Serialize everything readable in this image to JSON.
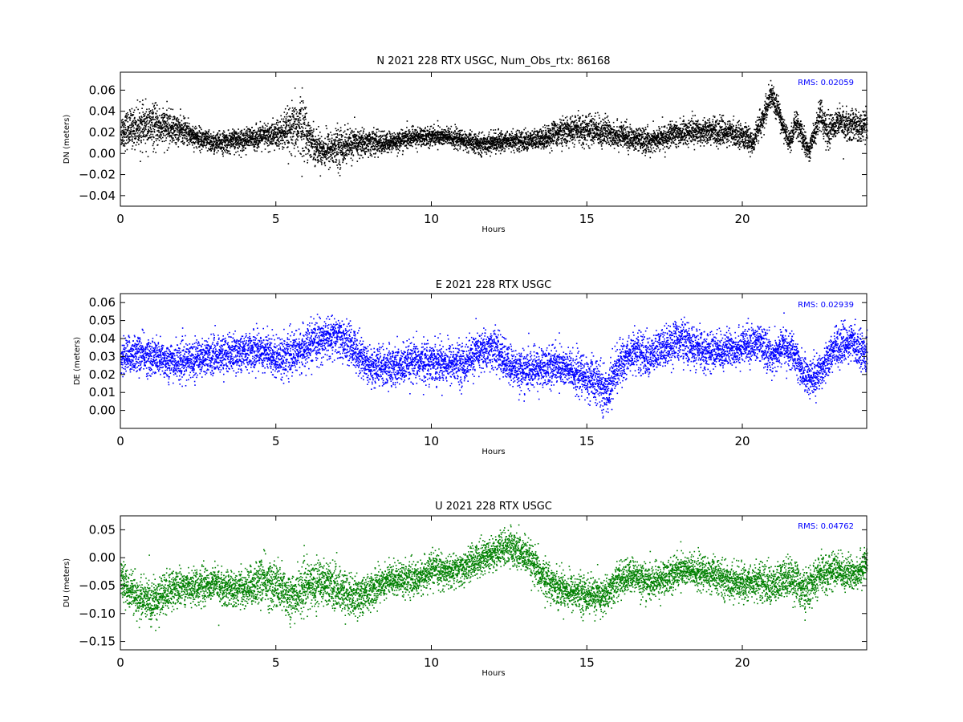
{
  "chart_data": [
    {
      "type": "scatter",
      "title": "N 2021 228 RTX  USGC, Num_Obs_rtx: 86168",
      "xlabel": "Hours",
      "ylabel": "DN (meters)",
      "xlim": [
        0,
        24
      ],
      "ylim": [
        -0.05,
        0.077
      ],
      "xticks": [
        0,
        5,
        10,
        15,
        20
      ],
      "yticks": [
        -0.04,
        -0.02,
        0.0,
        0.02,
        0.04,
        0.06
      ],
      "ytick_labels": [
        "−0.04",
        "−0.02",
        "0.00",
        "0.02",
        "0.04",
        "0.06"
      ],
      "annotation": "RMS:  0.02059",
      "color": "#000000",
      "trend": {
        "x": [
          0,
          0.5,
          1,
          1.5,
          2,
          2.5,
          3,
          3.5,
          4,
          4.5,
          5,
          5.5,
          5.8,
          6,
          6.3,
          6.5,
          7,
          7.5,
          8,
          8.5,
          9,
          9.5,
          10,
          10.5,
          11,
          11.5,
          12,
          12.5,
          13,
          13.5,
          14,
          14.5,
          15,
          15.5,
          16,
          16.5,
          17,
          17.5,
          18,
          18.5,
          19,
          19.5,
          20,
          20.3,
          20.6,
          20.9,
          21.1,
          21.3,
          21.5,
          21.7,
          21.9,
          22.1,
          22.3,
          22.5,
          22.7,
          23,
          23.5,
          24
        ],
        "y": [
          0.022,
          0.025,
          0.026,
          0.025,
          0.022,
          0.015,
          0.01,
          0.012,
          0.014,
          0.016,
          0.018,
          0.022,
          0.028,
          0.018,
          0.006,
          0.004,
          0.006,
          0.01,
          0.011,
          0.01,
          0.013,
          0.016,
          0.017,
          0.016,
          0.013,
          0.009,
          0.011,
          0.013,
          0.012,
          0.014,
          0.02,
          0.022,
          0.023,
          0.021,
          0.018,
          0.014,
          0.012,
          0.016,
          0.02,
          0.022,
          0.022,
          0.02,
          0.018,
          0.01,
          0.03,
          0.055,
          0.045,
          0.025,
          0.01,
          0.03,
          0.018,
          0.002,
          0.02,
          0.04,
          0.02,
          0.03,
          0.028,
          0.025
        ],
        "spread": [
          0.016,
          0.018,
          0.02,
          0.016,
          0.012,
          0.01,
          0.01,
          0.01,
          0.01,
          0.011,
          0.014,
          0.022,
          0.03,
          0.02,
          0.014,
          0.016,
          0.018,
          0.014,
          0.012,
          0.01,
          0.009,
          0.009,
          0.009,
          0.009,
          0.009,
          0.009,
          0.009,
          0.009,
          0.009,
          0.01,
          0.012,
          0.013,
          0.014,
          0.014,
          0.012,
          0.011,
          0.011,
          0.011,
          0.012,
          0.012,
          0.012,
          0.012,
          0.011,
          0.01,
          0.012,
          0.014,
          0.012,
          0.01,
          0.01,
          0.012,
          0.012,
          0.01,
          0.012,
          0.014,
          0.014,
          0.014,
          0.014,
          0.014
        ]
      }
    },
    {
      "type": "scatter",
      "title": "E 2021 228 RTX  USGC",
      "xlabel": "Hours",
      "ylabel": "DE (meters)",
      "xlim": [
        0,
        24
      ],
      "ylim": [
        -0.01,
        0.065
      ],
      "xticks": [
        0,
        5,
        10,
        15,
        20
      ],
      "yticks": [
        0.0,
        0.01,
        0.02,
        0.03,
        0.04,
        0.05,
        0.06
      ],
      "ytick_labels": [
        "0.00",
        "0.01",
        "0.02",
        "0.03",
        "0.04",
        "0.05",
        "0.06"
      ],
      "annotation": "RMS:  0.02939",
      "color": "#0000ff",
      "trend": {
        "x": [
          0,
          0.5,
          1,
          1.5,
          2,
          2.5,
          3,
          3.5,
          4,
          4.5,
          5,
          5.5,
          6,
          6.5,
          7,
          7.5,
          8,
          8.5,
          9,
          9.5,
          10,
          10.5,
          11,
          11.5,
          12,
          12.5,
          13,
          13.5,
          14,
          14.5,
          15,
          15.4,
          15.6,
          15.8,
          16,
          16.5,
          17,
          17.5,
          18,
          18.5,
          19,
          19.5,
          20,
          20.5,
          21,
          21.3,
          21.6,
          22,
          22.3,
          22.6,
          23,
          23.5,
          24
        ],
        "y": [
          0.03,
          0.032,
          0.03,
          0.028,
          0.027,
          0.03,
          0.031,
          0.032,
          0.033,
          0.034,
          0.03,
          0.031,
          0.036,
          0.04,
          0.041,
          0.035,
          0.025,
          0.024,
          0.025,
          0.027,
          0.028,
          0.027,
          0.026,
          0.033,
          0.035,
          0.025,
          0.022,
          0.024,
          0.026,
          0.022,
          0.018,
          0.015,
          0.01,
          0.018,
          0.025,
          0.034,
          0.03,
          0.036,
          0.04,
          0.034,
          0.033,
          0.034,
          0.036,
          0.038,
          0.03,
          0.037,
          0.032,
          0.02,
          0.018,
          0.026,
          0.036,
          0.038,
          0.032
        ],
        "spread": [
          0.01,
          0.01,
          0.01,
          0.01,
          0.01,
          0.01,
          0.01,
          0.01,
          0.01,
          0.011,
          0.011,
          0.011,
          0.011,
          0.011,
          0.011,
          0.011,
          0.011,
          0.011,
          0.011,
          0.011,
          0.011,
          0.011,
          0.011,
          0.011,
          0.011,
          0.011,
          0.011,
          0.011,
          0.011,
          0.011,
          0.012,
          0.012,
          0.012,
          0.012,
          0.011,
          0.011,
          0.011,
          0.011,
          0.011,
          0.011,
          0.01,
          0.01,
          0.01,
          0.01,
          0.01,
          0.01,
          0.01,
          0.01,
          0.01,
          0.01,
          0.01,
          0.01,
          0.01
        ]
      }
    },
    {
      "type": "scatter",
      "title": "U 2021 228 RTX  USGC",
      "xlabel": "Hours",
      "ylabel": "DU (meters)",
      "xlim": [
        0,
        24
      ],
      "ylim": [
        -0.165,
        0.075
      ],
      "xticks": [
        0,
        5,
        10,
        15,
        20
      ],
      "yticks": [
        -0.15,
        -0.1,
        -0.05,
        0.0,
        0.05
      ],
      "ytick_labels": [
        "−0.15",
        "−0.10",
        "−0.05",
        "0.00",
        "0.05"
      ],
      "annotation": "RMS:  0.04762",
      "color": "#008000",
      "trend": {
        "x": [
          0,
          0.5,
          1,
          1.5,
          2,
          2.5,
          3,
          3.5,
          4,
          4.5,
          5,
          5.5,
          6,
          6.5,
          7,
          7.5,
          8,
          8.5,
          9,
          9.5,
          10,
          10.5,
          11,
          11.5,
          12,
          12.5,
          13,
          13.5,
          14,
          14.5,
          15,
          15.5,
          16,
          16.5,
          17,
          17.5,
          18,
          18.5,
          19,
          19.5,
          20,
          20.5,
          21,
          21.5,
          22,
          22.5,
          23,
          23.5,
          24
        ],
        "y": [
          -0.04,
          -0.07,
          -0.08,
          -0.06,
          -0.05,
          -0.05,
          -0.045,
          -0.055,
          -0.055,
          -0.04,
          -0.05,
          -0.07,
          -0.05,
          -0.04,
          -0.055,
          -0.07,
          -0.06,
          -0.04,
          -0.035,
          -0.04,
          -0.02,
          -0.025,
          -0.02,
          0.0,
          0.01,
          0.02,
          0.005,
          -0.03,
          -0.05,
          -0.06,
          -0.065,
          -0.07,
          -0.04,
          -0.03,
          -0.045,
          -0.035,
          -0.02,
          -0.025,
          -0.03,
          -0.04,
          -0.045,
          -0.04,
          -0.05,
          -0.03,
          -0.06,
          -0.03,
          -0.02,
          -0.03,
          -0.01
        ],
        "spread": [
          0.03,
          0.035,
          0.04,
          0.035,
          0.03,
          0.03,
          0.03,
          0.03,
          0.032,
          0.04,
          0.042,
          0.042,
          0.04,
          0.04,
          0.038,
          0.035,
          0.032,
          0.03,
          0.028,
          0.028,
          0.028,
          0.028,
          0.028,
          0.03,
          0.03,
          0.032,
          0.032,
          0.032,
          0.032,
          0.032,
          0.032,
          0.032,
          0.03,
          0.03,
          0.03,
          0.03,
          0.03,
          0.03,
          0.03,
          0.03,
          0.03,
          0.032,
          0.035,
          0.035,
          0.035,
          0.033,
          0.03,
          0.03,
          0.03
        ]
      }
    }
  ]
}
